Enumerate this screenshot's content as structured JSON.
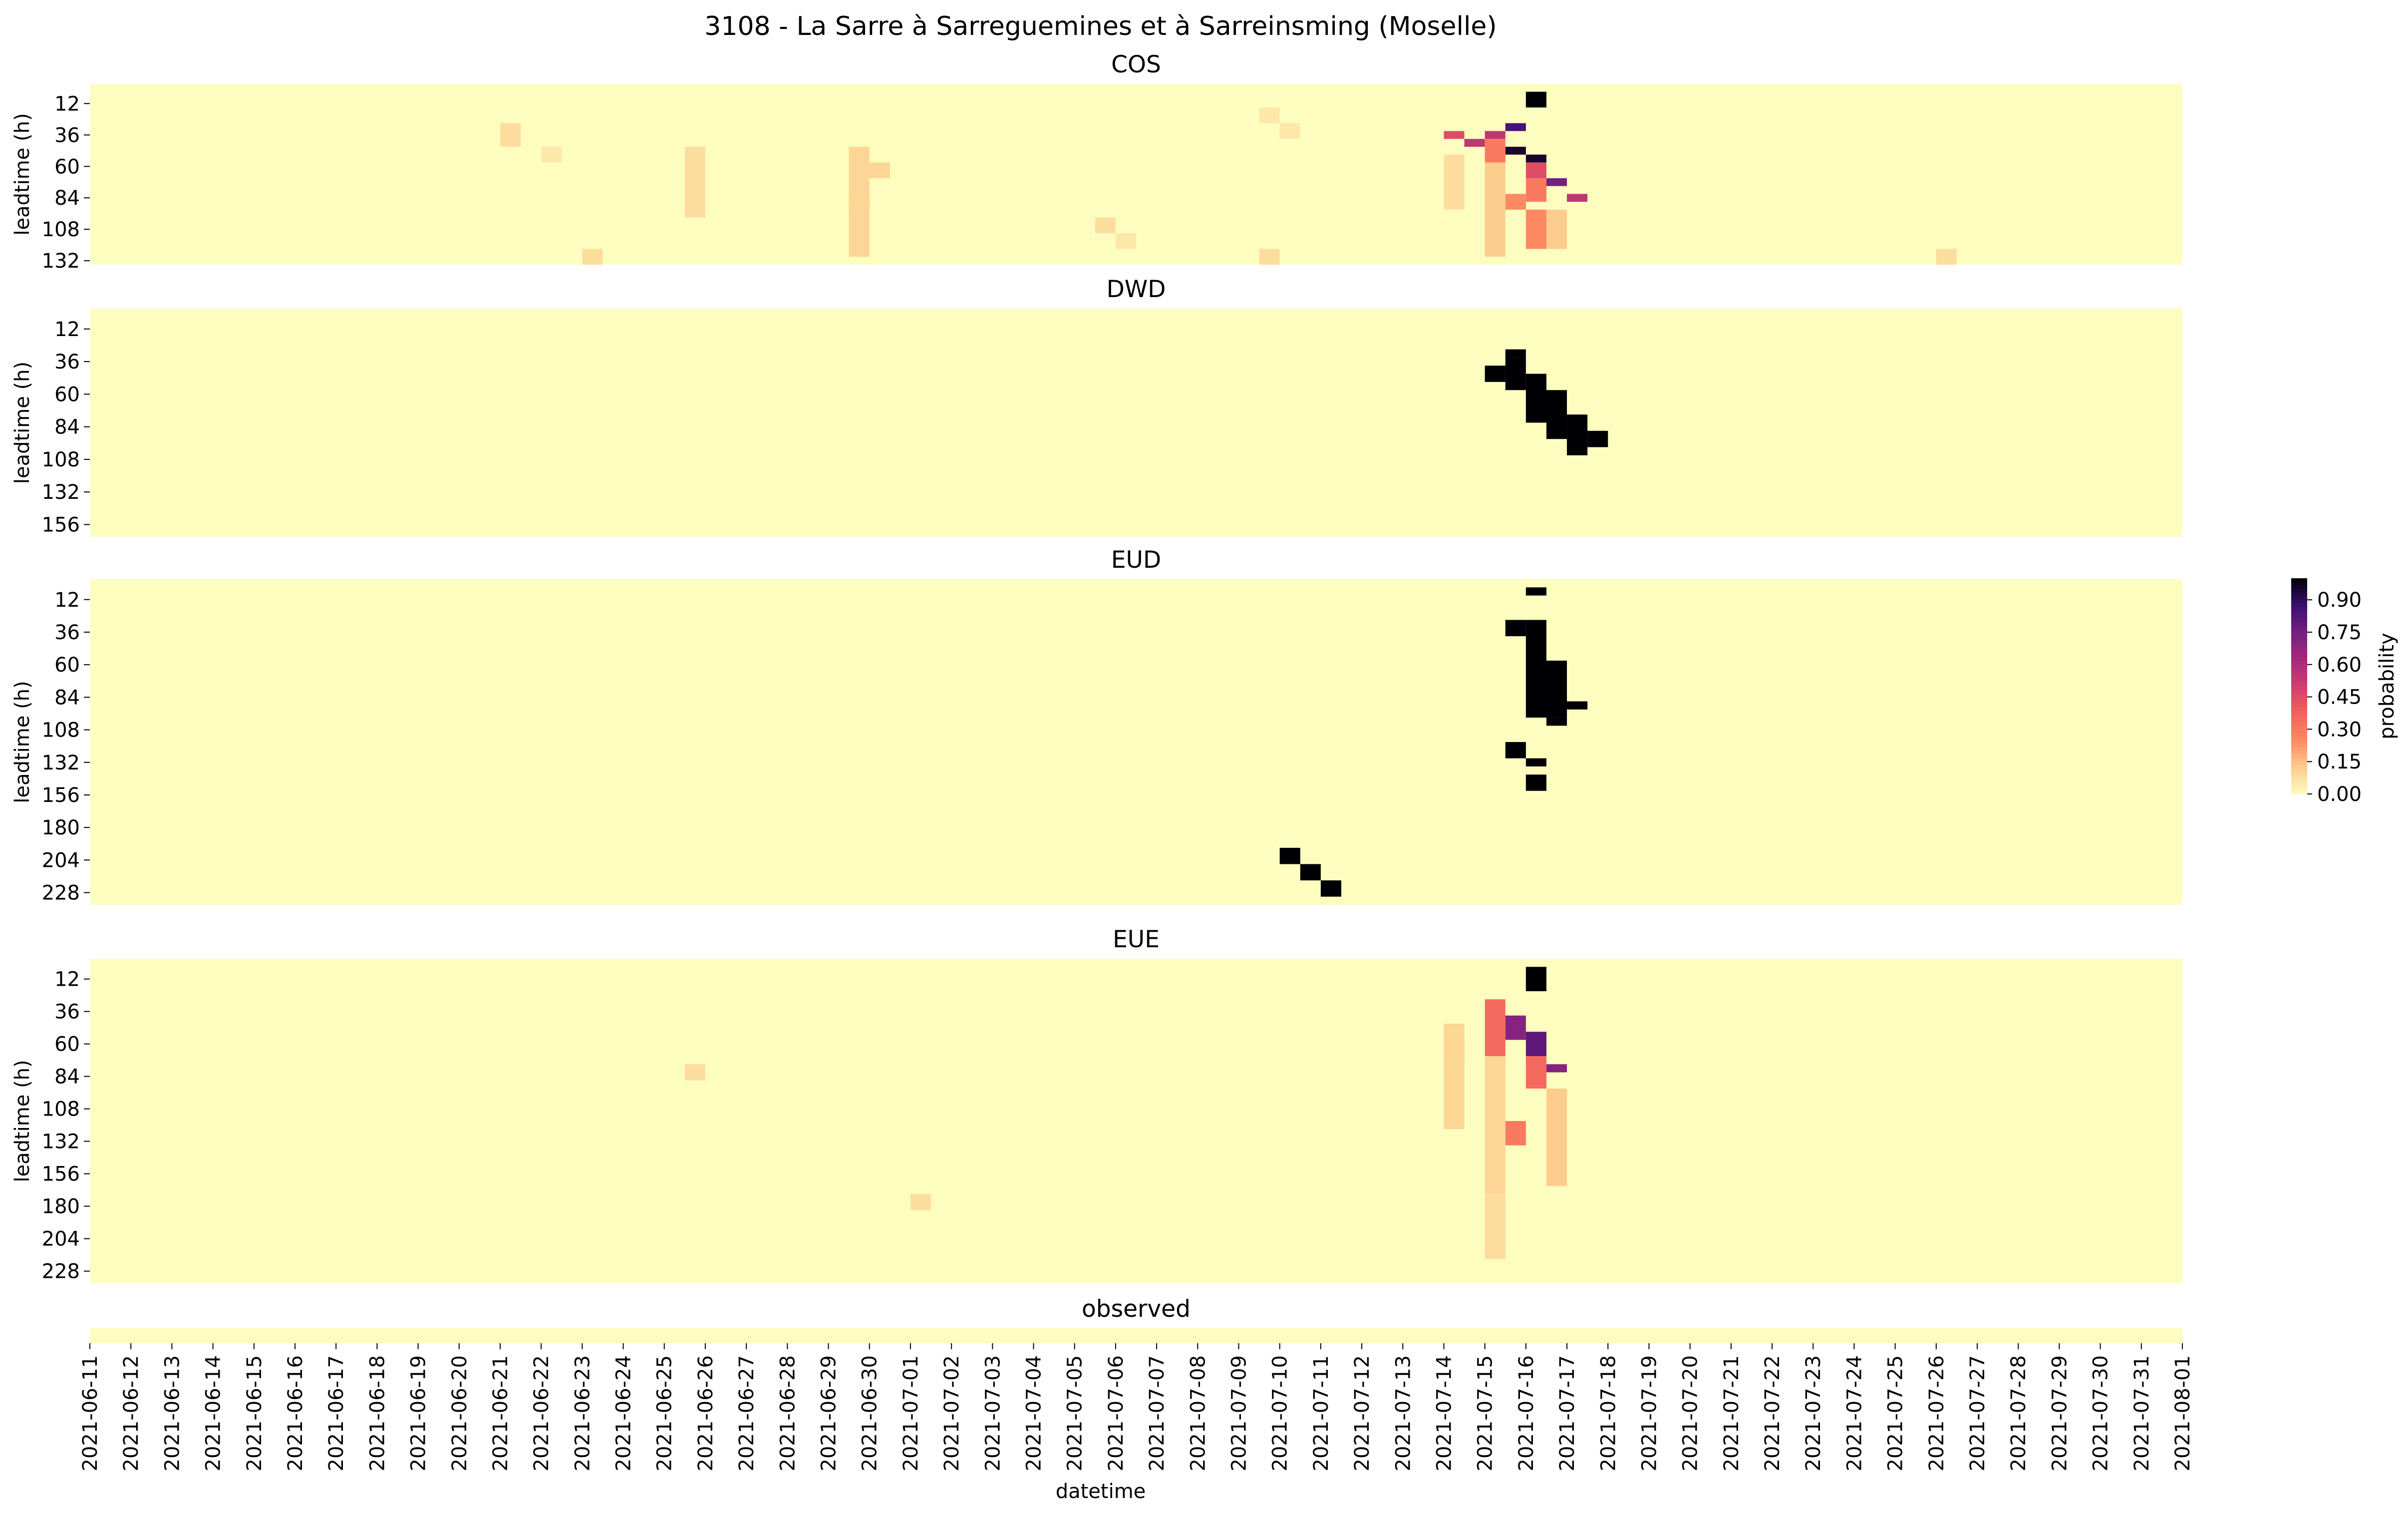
{
  "chart_data": {
    "type": "heatmap",
    "title": "3108 - La Sarre à Sarreguemines et à Sarreinsming (Moselle)",
    "xlabel": "datetime",
    "ylabel": "leadtime (h)",
    "x_ticks": [
      "2021-06-11",
      "2021-06-12",
      "2021-06-13",
      "2021-06-14",
      "2021-06-15",
      "2021-06-16",
      "2021-06-17",
      "2021-06-18",
      "2021-06-19",
      "2021-06-20",
      "2021-06-21",
      "2021-06-22",
      "2021-06-23",
      "2021-06-24",
      "2021-06-25",
      "2021-06-26",
      "2021-06-27",
      "2021-06-28",
      "2021-06-29",
      "2021-06-30",
      "2021-07-01",
      "2021-07-02",
      "2021-07-03",
      "2021-07-04",
      "2021-07-05",
      "2021-07-06",
      "2021-07-07",
      "2021-07-08",
      "2021-07-09",
      "2021-07-10",
      "2021-07-11",
      "2021-07-12",
      "2021-07-13",
      "2021-07-14",
      "2021-07-15",
      "2021-07-16",
      "2021-07-17",
      "2021-07-18",
      "2021-07-19",
      "2021-07-20",
      "2021-07-21",
      "2021-07-22",
      "2021-07-23",
      "2021-07-24",
      "2021-07-25",
      "2021-07-26",
      "2021-07-27",
      "2021-07-28",
      "2021-07-29",
      "2021-07-30",
      "2021-07-31",
      "2021-08-01"
    ],
    "x_start": "2021-06-11",
    "x_end": "2021-08-01",
    "cells_per_day": 2,
    "leadtime_step_h": 6,
    "colorbar": {
      "label": "probability",
      "ticks": [
        "0.00",
        "0.15",
        "0.30",
        "0.45",
        "0.60",
        "0.75",
        "0.90"
      ],
      "range": [
        0,
        1
      ],
      "colormap": "magma_r"
    },
    "panels": [
      {
        "title": "COS",
        "y_ticks": [
          "12",
          "36",
          "60",
          "84",
          "108",
          "132"
        ],
        "leadtime_max_h": 138,
        "cells": [
          {
            "date": "2021-07-16 00:00",
            "leadtime": [
              6,
              18
            ],
            "p": 1.0
          },
          {
            "date": "2021-07-15 12:00",
            "leadtime": [
              30,
              36
            ],
            "p": 0.85
          },
          {
            "date": "2021-07-15 12:00",
            "leadtime": [
              48,
              54
            ],
            "p": 0.95
          },
          {
            "date": "2021-07-16 00:00",
            "leadtime": [
              54,
              60
            ],
            "p": 0.95
          },
          {
            "date": "2021-07-16 12:00",
            "leadtime": [
              72,
              78
            ],
            "p": 0.75
          },
          {
            "date": "2021-07-17 00:00",
            "leadtime": [
              84,
              90
            ],
            "p": 0.55
          },
          {
            "date": "2021-07-14 00:00",
            "leadtime": [
              36,
              42
            ],
            "p": 0.45
          },
          {
            "date": "2021-07-14 12:00",
            "leadtime": [
              42,
              48
            ],
            "p": 0.55
          },
          {
            "date": "2021-07-15 00:00",
            "leadtime": [
              36,
              42
            ],
            "p": 0.55
          },
          {
            "date": "2021-07-16 00:00",
            "leadtime": [
              60,
              72
            ],
            "p": 0.45
          },
          {
            "date": "2021-07-15 00:00",
            "leadtime": [
              42,
              60
            ],
            "p": 0.3
          },
          {
            "date": "2021-07-16 00:00",
            "leadtime": [
              72,
              90
            ],
            "p": 0.3
          },
          {
            "date": "2021-07-15 12:00",
            "leadtime": [
              84,
              96
            ],
            "p": 0.25
          },
          {
            "date": "2021-07-16 00:00",
            "leadtime": [
              96,
              126
            ],
            "p": 0.25
          },
          {
            "date": "2021-07-15 00:00",
            "leadtime": [
              60,
              132
            ],
            "p": 0.12
          },
          {
            "date": "2021-07-14 00:00",
            "leadtime": [
              54,
              96
            ],
            "p": 0.08
          },
          {
            "date": "2021-07-16 12:00",
            "leadtime": [
              96,
              126
            ],
            "p": 0.12
          },
          {
            "date": "2021-06-29 12:00",
            "leadtime": [
              84,
              96
            ],
            "p": 0.25
          },
          {
            "date": "2021-06-29 12:00",
            "leadtime": [
              48,
              132
            ],
            "p": 0.1
          },
          {
            "date": "2021-06-30 00:00",
            "leadtime": [
              60,
              72
            ],
            "p": 0.1
          },
          {
            "date": "2021-06-25 12:00",
            "leadtime": [
              48,
              102
            ],
            "p": 0.08
          },
          {
            "date": "2021-06-21 00:00",
            "leadtime": [
              30,
              48
            ],
            "p": 0.08
          },
          {
            "date": "2021-06-22 00:00",
            "leadtime": [
              48,
              60
            ],
            "p": 0.05
          },
          {
            "date": "2021-06-23 00:00",
            "leadtime": [
              126,
              138
            ],
            "p": 0.08
          },
          {
            "date": "2021-07-05 12:00",
            "leadtime": [
              102,
              114
            ],
            "p": 0.08
          },
          {
            "date": "2021-07-06 00:00",
            "leadtime": [
              114,
              126
            ],
            "p": 0.05
          },
          {
            "date": "2021-07-09 12:00",
            "leadtime": [
              18,
              30
            ],
            "p": 0.05
          },
          {
            "date": "2021-07-10 00:00",
            "leadtime": [
              30,
              42
            ],
            "p": 0.05
          },
          {
            "date": "2021-07-09 12:00",
            "leadtime": [
              126,
              138
            ],
            "p": 0.08
          },
          {
            "date": "2021-07-26 00:00",
            "leadtime": [
              126,
              138
            ],
            "p": 0.08
          }
        ]
      },
      {
        "title": "DWD",
        "y_ticks": [
          "12",
          "36",
          "60",
          "84",
          "108",
          "132",
          "156"
        ],
        "leadtime_max_h": 168,
        "cells": [
          {
            "date": "2021-07-15 12:00",
            "leadtime": [
              30,
              36
            ],
            "p": 1.0
          },
          {
            "date": "2021-07-15 00:00",
            "leadtime": [
              42,
              54
            ],
            "p": 1.0
          },
          {
            "date": "2021-07-15 12:00",
            "leadtime": [
              36,
              60
            ],
            "p": 1.0
          },
          {
            "date": "2021-07-16 00:00",
            "leadtime": [
              48,
              84
            ],
            "p": 1.0
          },
          {
            "date": "2021-07-16 12:00",
            "leadtime": [
              60,
              96
            ],
            "p": 1.0
          },
          {
            "date": "2021-07-17 00:00",
            "leadtime": [
              78,
              108
            ],
            "p": 1.0
          },
          {
            "date": "2021-07-17 12:00",
            "leadtime": [
              90,
              102
            ],
            "p": 1.0
          }
        ]
      },
      {
        "title": "EUD",
        "y_ticks": [
          "12",
          "36",
          "60",
          "84",
          "108",
          "132",
          "156",
          "180",
          "204",
          "228"
        ],
        "leadtime_max_h": 240,
        "cells": [
          {
            "date": "2021-07-16 00:00",
            "leadtime": [
              6,
              12
            ],
            "p": 1.0
          },
          {
            "date": "2021-07-15 12:00",
            "leadtime": [
              30,
              42
            ],
            "p": 1.0
          },
          {
            "date": "2021-07-16 00:00",
            "leadtime": [
              30,
              102
            ],
            "p": 1.0
          },
          {
            "date": "2021-07-16 12:00",
            "leadtime": [
              60,
              102
            ],
            "p": 1.0
          },
          {
            "date": "2021-07-17 00:00",
            "leadtime": [
              90,
              96
            ],
            "p": 1.0
          },
          {
            "date": "2021-07-16 12:00",
            "leadtime": [
              102,
              108
            ],
            "p": 1.0
          },
          {
            "date": "2021-07-15 12:00",
            "leadtime": [
              120,
              132
            ],
            "p": 1.0
          },
          {
            "date": "2021-07-16 00:00",
            "leadtime": [
              132,
              138
            ],
            "p": 1.0
          },
          {
            "date": "2021-07-16 00:00",
            "leadtime": [
              144,
              156
            ],
            "p": 1.0
          },
          {
            "date": "2021-07-10 00:00",
            "leadtime": [
              198,
              210
            ],
            "p": 1.0
          },
          {
            "date": "2021-07-10 12:00",
            "leadtime": [
              210,
              222
            ],
            "p": 1.0
          },
          {
            "date": "2021-07-11 00:00",
            "leadtime": [
              222,
              234
            ],
            "p": 1.0
          }
        ]
      },
      {
        "title": "EUE",
        "y_ticks": [
          "12",
          "36",
          "60",
          "84",
          "108",
          "132",
          "156",
          "180",
          "204",
          "228"
        ],
        "leadtime_max_h": 240,
        "cells": [
          {
            "date": "2021-07-16 00:00",
            "leadtime": [
              6,
              24
            ],
            "p": 1.0
          },
          {
            "date": "2021-07-15 12:00",
            "leadtime": [
              42,
              60
            ],
            "p": 0.7
          },
          {
            "date": "2021-07-16 00:00",
            "leadtime": [
              54,
              72
            ],
            "p": 0.8
          },
          {
            "date": "2021-07-16 12:00",
            "leadtime": [
              78,
              84
            ],
            "p": 0.7
          },
          {
            "date": "2021-07-15 00:00",
            "leadtime": [
              30,
              72
            ],
            "p": 0.35
          },
          {
            "date": "2021-07-16 00:00",
            "leadtime": [
              72,
              96
            ],
            "p": 0.35
          },
          {
            "date": "2021-07-14 00:00",
            "leadtime": [
              60,
              78
            ],
            "p": 0.35
          },
          {
            "date": "2021-07-15 12:00",
            "leadtime": [
              120,
              138
            ],
            "p": 0.3
          },
          {
            "date": "2021-07-14 00:00",
            "leadtime": [
              48,
              126
            ],
            "p": 0.1
          },
          {
            "date": "2021-07-15 00:00",
            "leadtime": [
              72,
              174
            ],
            "p": 0.1
          },
          {
            "date": "2021-07-16 12:00",
            "leadtime": [
              96,
              168
            ],
            "p": 0.12
          },
          {
            "date": "2021-06-25 12:00",
            "leadtime": [
              78,
              90
            ],
            "p": 0.08
          },
          {
            "date": "2021-07-01 00:00",
            "leadtime": [
              174,
              186
            ],
            "p": 0.08
          },
          {
            "date": "2021-07-15 00:00",
            "leadtime": [
              174,
              222
            ],
            "p": 0.08
          }
        ]
      },
      {
        "title": "observed",
        "y_ticks": [],
        "leadtime_max_h": 6,
        "cells": []
      }
    ]
  }
}
